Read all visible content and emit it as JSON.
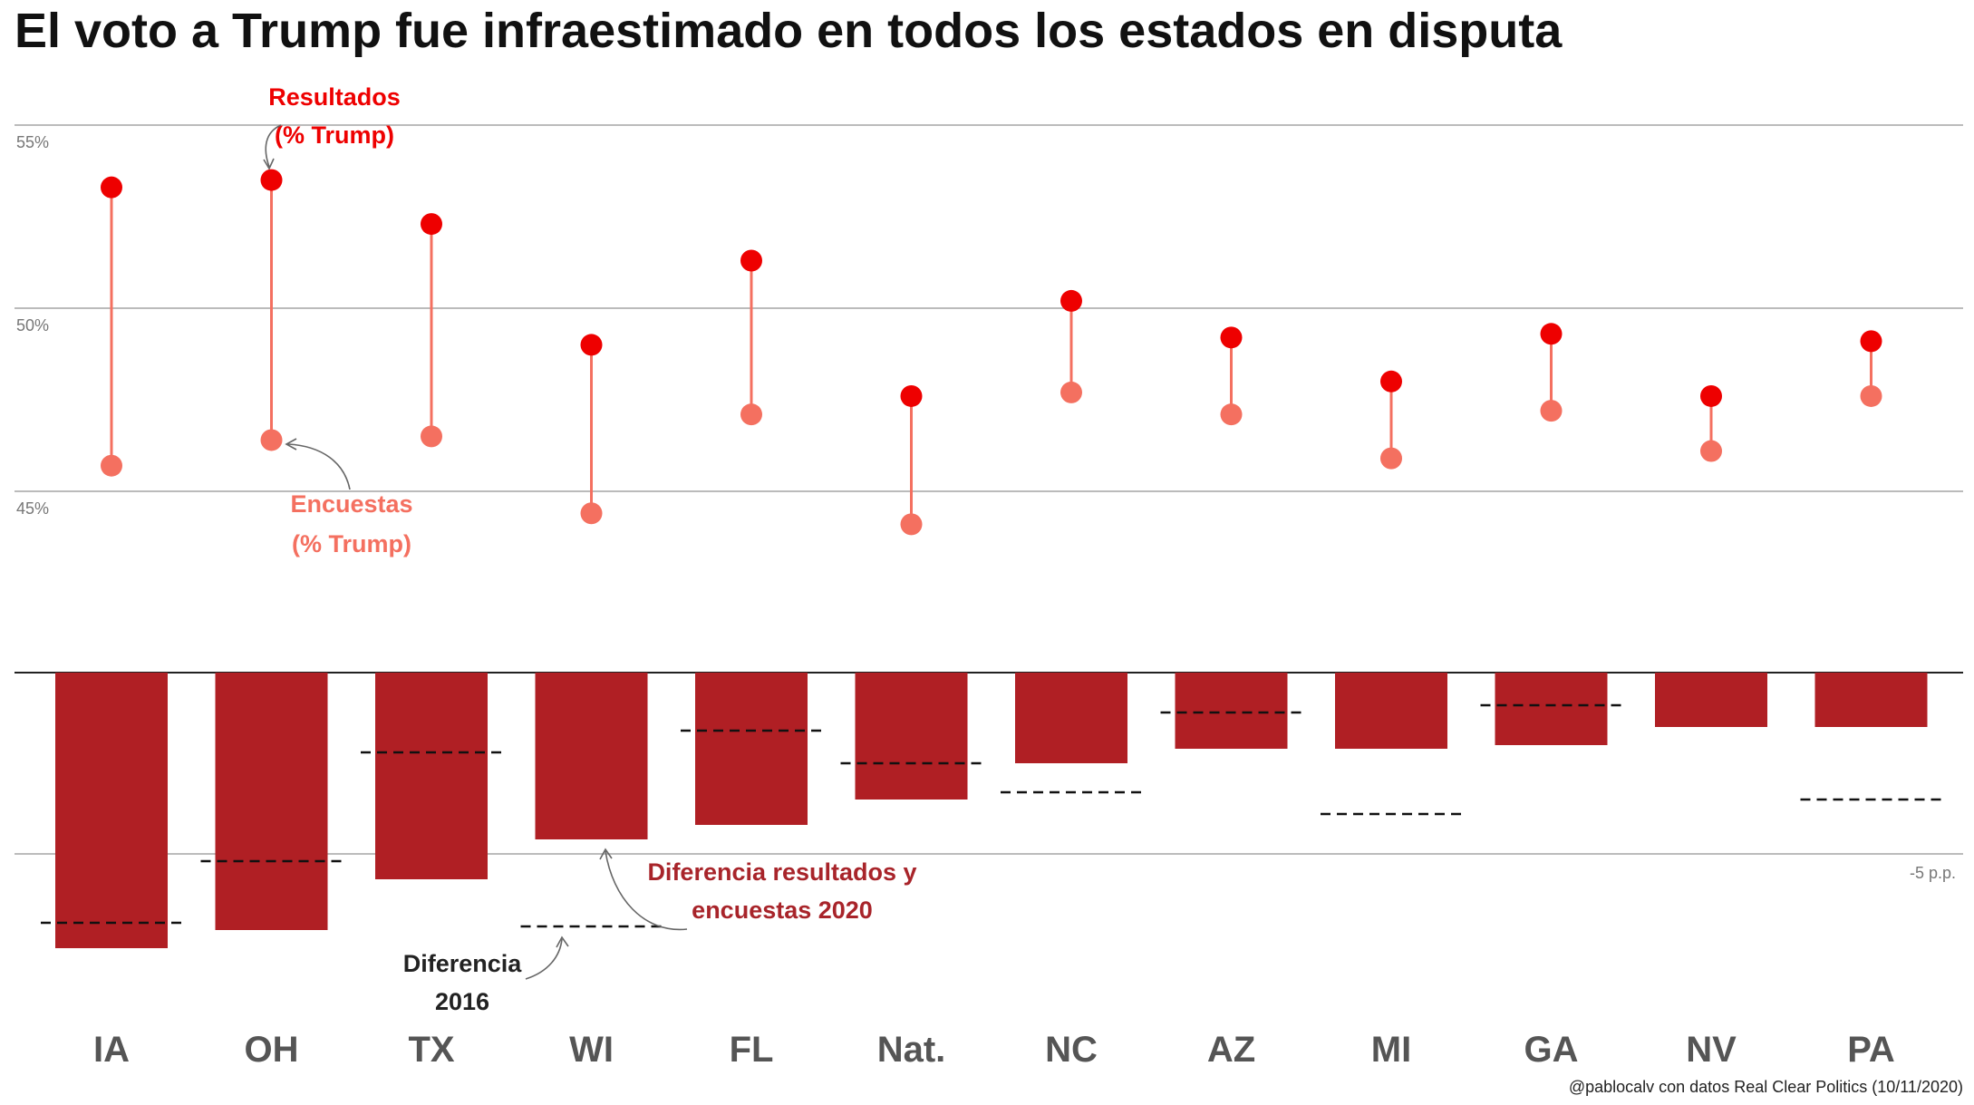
{
  "title": "El voto a Trump fue infraestimado en todos los estados en disputa",
  "source": "@pablocalv con datos Real Clear Politics (10/11/2020)",
  "colors": {
    "result": "#ee0000",
    "poll": "#f47060",
    "connector": "#f47060",
    "bar": "#b01f24",
    "annotation_2020": "#a8242a",
    "text_dark": "#222222",
    "grid": "#bbbbbb"
  },
  "annotations": {
    "resultados_l1": "Resultados",
    "resultados_l2": "(% Trump)",
    "encuestas_l1": "Encuestas",
    "encuestas_l2": "(% Trump)",
    "diferencia2020_l1": "Diferencia resultados y",
    "diferencia2020_l2": "encuestas 2020",
    "diferencia2016_l1": "Diferencia",
    "diferencia2016_l2": "2016"
  },
  "chart_data": [
    {
      "type": "scatter",
      "subtype": "dumbbell",
      "categories": [
        "IA",
        "OH",
        "TX",
        "WI",
        "FL",
        "Nat.",
        "NC",
        "AZ",
        "MI",
        "GA",
        "NV",
        "PA"
      ],
      "series": [
        {
          "name": "Resultados (% Trump)",
          "values": [
            53.3,
            53.5,
            52.3,
            49.0,
            51.3,
            47.6,
            50.2,
            49.2,
            48.0,
            49.3,
            47.6,
            49.1
          ]
        },
        {
          "name": "Encuestas (% Trump)",
          "values": [
            45.7,
            46.4,
            46.5,
            44.4,
            47.1,
            44.1,
            47.7,
            47.1,
            45.9,
            47.2,
            46.1,
            47.6
          ]
        }
      ],
      "yticks": [
        {
          "value": 45,
          "label": "45%"
        },
        {
          "value": 50,
          "label": "50%"
        },
        {
          "value": 55,
          "label": "55%"
        }
      ],
      "ylim": [
        42.5,
        56.5
      ],
      "grid": true
    },
    {
      "type": "bar",
      "categories": [
        "IA",
        "OH",
        "TX",
        "WI",
        "FL",
        "Nat.",
        "NC",
        "AZ",
        "MI",
        "GA",
        "NV",
        "PA"
      ],
      "series": [
        {
          "name": "Diferencia resultados y encuestas 2020",
          "values": [
            -7.6,
            -7.1,
            -5.7,
            -4.6,
            -4.2,
            -3.5,
            -2.5,
            -2.1,
            -2.1,
            -2.0,
            -1.5,
            -1.5
          ]
        },
        {
          "name": "Diferencia 2016",
          "values": [
            -6.9,
            -5.2,
            -2.2,
            -7.0,
            -1.6,
            -2.5,
            -3.3,
            -1.1,
            -3.9,
            -0.9,
            null,
            -3.5
          ]
        }
      ],
      "yticks": [
        {
          "value": -5,
          "label": "-5 p.p."
        }
      ],
      "ylim": [
        -8.8,
        0
      ],
      "grid": true
    }
  ]
}
